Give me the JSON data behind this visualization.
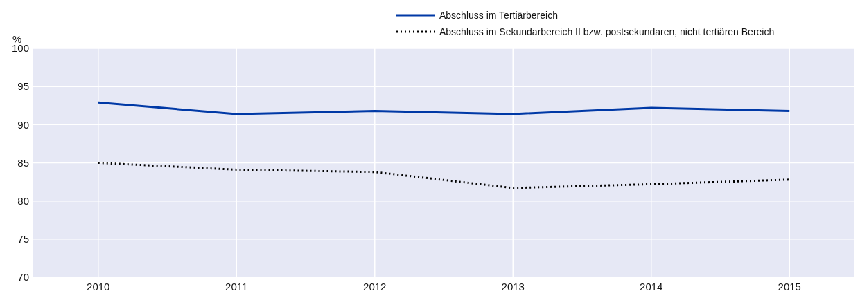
{
  "chart_data": {
    "type": "line",
    "ylabel": "%",
    "categories": [
      "2010",
      "2011",
      "2012",
      "2013",
      "2014",
      "2015"
    ],
    "ylim": [
      70,
      100
    ],
    "yticks": [
      70,
      75,
      80,
      85,
      90,
      95,
      100
    ],
    "grid": true,
    "legend": "top right",
    "series": [
      {
        "name": "Abschluss im Tertiärbereich",
        "color": "#0039a6",
        "line_style": "solid",
        "values": [
          92.9,
          91.4,
          91.8,
          91.4,
          92.2,
          91.8
        ]
      },
      {
        "name": "Abschluss im Sekundarbereich II bzw. postsekundaren, nicht tertiären Bereich",
        "color": "#000000",
        "line_style": "dotted",
        "values": [
          85.0,
          84.1,
          83.8,
          81.7,
          82.2,
          82.8
        ]
      }
    ]
  }
}
